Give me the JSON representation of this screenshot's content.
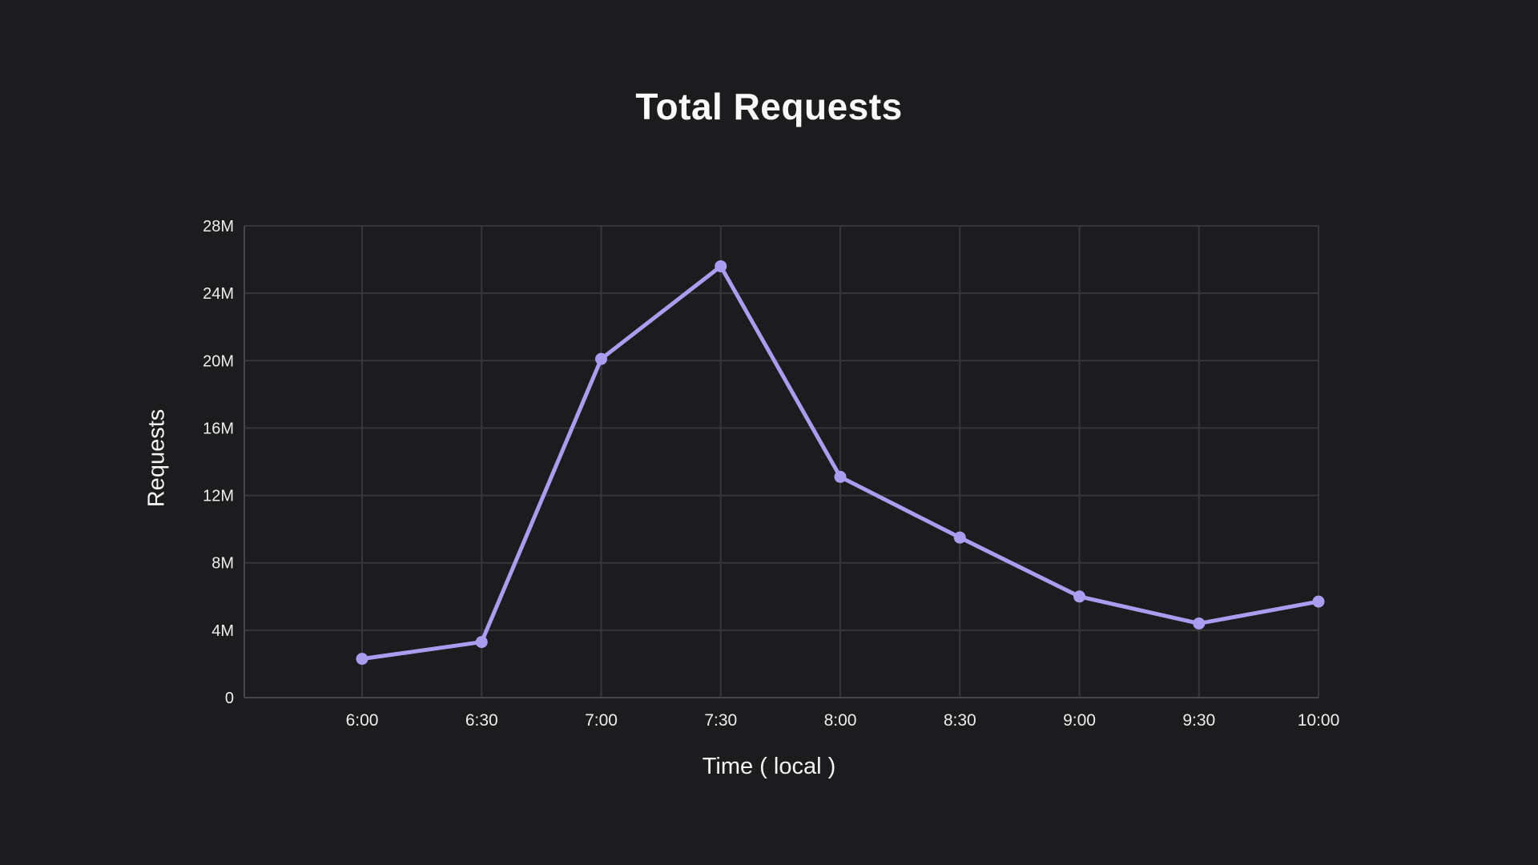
{
  "page": {
    "background_color": "#1c1c1e",
    "text_color": "#f2f2f2"
  },
  "chart_data": {
    "type": "line",
    "title": "Total Requests",
    "xlabel": "Time ( local )",
    "ylabel": "Requests",
    "unit": "M",
    "categories": [
      "6:00",
      "6:30",
      "7:00",
      "7:30",
      "8:00",
      "8:30",
      "9:00",
      "9:30",
      "10:00"
    ],
    "series": [
      {
        "name": "Total Requests",
        "values_millions": [
          2.3,
          3.3,
          20.1,
          25.6,
          13.1,
          9.5,
          6.0,
          4.4,
          5.7
        ]
      }
    ],
    "y_ticks": [
      {
        "value_millions": 0,
        "label": "0"
      },
      {
        "value_millions": 4,
        "label": "4M"
      },
      {
        "value_millions": 8,
        "label": "8M"
      },
      {
        "value_millions": 12,
        "label": "12M"
      },
      {
        "value_millions": 16,
        "label": "16M"
      },
      {
        "value_millions": 20,
        "label": "20M"
      },
      {
        "value_millions": 24,
        "label": "24M"
      },
      {
        "value_millions": 28,
        "label": "28M"
      }
    ],
    "ylim_millions": [
      0,
      28
    ],
    "grid": true,
    "legend_position": "none",
    "line_color": "#a99df0",
    "point_color": "#a99df0",
    "grid_color": "#37373b",
    "axis_color": "#46464b",
    "tick_text_color": "#eeeeee"
  }
}
